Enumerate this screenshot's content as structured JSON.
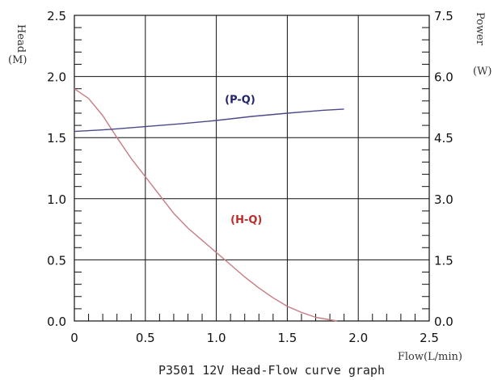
{
  "chart_data": {
    "type": "line",
    "title": "P3501 12V Head-Flow curve graph",
    "xlabel": "Flow(L/min)",
    "ylabel_left": "Head",
    "ylabel_left_unit": "(M)",
    "ylabel_right": "Power",
    "ylabel_right_unit": "(W)",
    "xlim": [
      0,
      2.5
    ],
    "ylim_left": [
      0,
      2.5
    ],
    "ylim_right": [
      0,
      7.5
    ],
    "grid": true,
    "x_ticks": [
      "0",
      "0.5",
      "1.0",
      "1.5",
      "2.0",
      "2.5"
    ],
    "y_left_ticks": [
      "0.0",
      "0.5",
      "1.0",
      "1.5",
      "2.0",
      "2.5"
    ],
    "y_right_ticks": [
      "0.0",
      "1.5",
      "3.0",
      "4.5",
      "6.0",
      "7.5"
    ],
    "series": [
      {
        "name": "(H-Q)",
        "axis": "left",
        "color": "#c87c84",
        "x": [
          0,
          0.1,
          0.2,
          0.3,
          0.4,
          0.5,
          0.6,
          0.7,
          0.8,
          0.9,
          1.0,
          1.1,
          1.2,
          1.3,
          1.4,
          1.5,
          1.6,
          1.7,
          1.8,
          1.85
        ],
        "y": [
          1.9,
          1.82,
          1.68,
          1.5,
          1.33,
          1.18,
          1.03,
          0.88,
          0.76,
          0.66,
          0.56,
          0.46,
          0.36,
          0.27,
          0.19,
          0.12,
          0.07,
          0.03,
          0.01,
          0.0
        ]
      },
      {
        "name": "(P-Q)",
        "axis": "right",
        "color": "#4a4a8a",
        "x": [
          0,
          0.25,
          0.5,
          0.75,
          1.0,
          1.25,
          1.5,
          1.75,
          1.9
        ],
        "y": [
          4.65,
          4.7,
          4.77,
          4.84,
          4.92,
          5.02,
          5.1,
          5.17,
          5.2
        ]
      }
    ]
  }
}
